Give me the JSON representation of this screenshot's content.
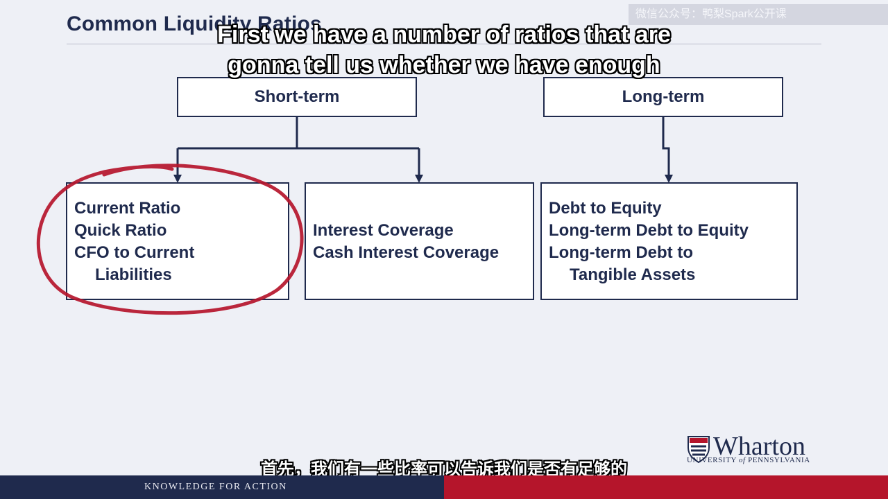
{
  "title": "Common Liquidity Ratios",
  "watermark": "微信公众号：鸭梨Spark公开课",
  "subtitle_en": "First we have a number of ratios that are gonna tell us whether we have enough",
  "subtitle_zh": "首先，我们有一些比率可以告诉我们是否有足够的",
  "diagram": {
    "short_term": {
      "label": "Short-term",
      "group_1": [
        "Current Ratio",
        "Quick Ratio",
        "CFO to Current",
        "Liabilities"
      ],
      "group_2": [
        "Interest Coverage",
        "Cash Interest Coverage"
      ]
    },
    "long_term": {
      "label": "Long-term",
      "group_1": [
        "Debt to Equity",
        "Long-term Debt to Equity",
        "Long-term Debt to",
        "Tangible Assets"
      ]
    }
  },
  "annotation": {
    "kind": "hand-drawn circle",
    "color": "#b5152b",
    "target": "Current Ratio group"
  },
  "footer": {
    "tagline": "KNOWLEDGE FOR ACTION",
    "logo_name": "Wharton",
    "logo_sub_a": "UNIVERSITY",
    "logo_sub_of": "of",
    "logo_sub_b": "PENNSYLVANIA"
  },
  "colors": {
    "navy": "#1f2a4d",
    "red": "#b5152b",
    "background": "#eef0f6"
  }
}
